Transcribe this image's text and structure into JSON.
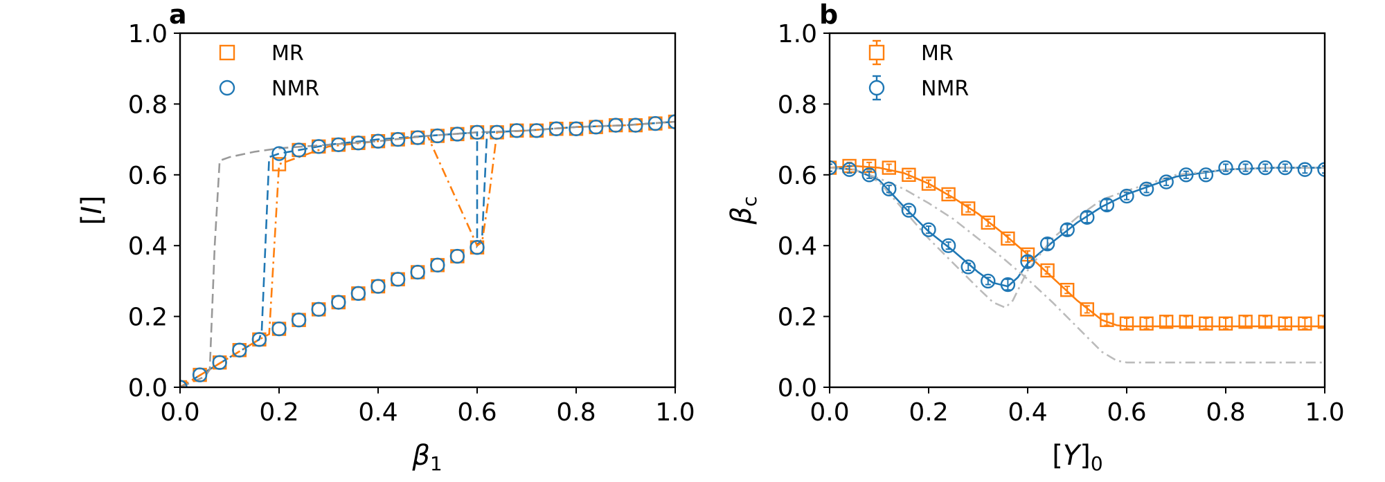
{
  "colors": {
    "mr": "#ff7f0e",
    "nmr": "#1f77b4",
    "reference": "#999999"
  },
  "chart_data": [
    {
      "panel": "a",
      "type": "line",
      "xlabel": "β1",
      "ylabel": "[I]",
      "xlim": [
        0,
        1
      ],
      "ylim": [
        0,
        1
      ],
      "xticks": [
        "0.0",
        "0.2",
        "0.4",
        "0.6",
        "0.8",
        "1.0"
      ],
      "yticks": [
        "0.0",
        "0.2",
        "0.4",
        "0.6",
        "0.8",
        "1.0"
      ],
      "grid": false,
      "legend_position": "top-left",
      "legend": [
        {
          "label": "MR",
          "marker": "square",
          "color": "#ff7f0e"
        },
        {
          "label": "NMR",
          "marker": "circle",
          "color": "#1f77b4"
        }
      ],
      "series": [
        {
          "name": "MR",
          "style": "markers",
          "marker": "square",
          "color": "#ff7f0e",
          "x": [
            0,
            0.04,
            0.08,
            0.12,
            0.16,
            0.2,
            0.24,
            0.28,
            0.32,
            0.36,
            0.4,
            0.44,
            0.48,
            0.52,
            0.56,
            0.6,
            0.2,
            0.24,
            0.28,
            0.32,
            0.36,
            0.4,
            0.44,
            0.48,
            0.52,
            0.56,
            0.6,
            0.64,
            0.68,
            0.72,
            0.76,
            0.8,
            0.84,
            0.88,
            0.92,
            0.96,
            1.0
          ],
          "y": [
            0,
            0.035,
            0.07,
            0.105,
            0.135,
            0.165,
            0.19,
            0.22,
            0.24,
            0.265,
            0.285,
            0.305,
            0.325,
            0.345,
            0.37,
            0.395,
            0.63,
            0.67,
            0.68,
            0.685,
            0.69,
            0.695,
            0.7,
            0.705,
            0.71,
            0.715,
            0.72,
            0.72,
            0.725,
            0.725,
            0.73,
            0.73,
            0.735,
            0.74,
            0.74,
            0.745,
            0.75
          ]
        },
        {
          "name": "NMR",
          "style": "markers",
          "marker": "circle",
          "color": "#1f77b4",
          "x": [
            0,
            0.04,
            0.08,
            0.12,
            0.16,
            0.2,
            0.24,
            0.28,
            0.32,
            0.36,
            0.4,
            0.44,
            0.48,
            0.52,
            0.56,
            0.6,
            0.2,
            0.24,
            0.28,
            0.32,
            0.36,
            0.4,
            0.44,
            0.48,
            0.52,
            0.56,
            0.6,
            0.64,
            0.68,
            0.72,
            0.76,
            0.8,
            0.84,
            0.88,
            0.92,
            0.96,
            1.0
          ],
          "y": [
            0,
            0.035,
            0.07,
            0.105,
            0.135,
            0.165,
            0.19,
            0.22,
            0.24,
            0.265,
            0.285,
            0.305,
            0.325,
            0.345,
            0.37,
            0.395,
            0.66,
            0.67,
            0.68,
            0.685,
            0.69,
            0.695,
            0.7,
            0.705,
            0.71,
            0.715,
            0.72,
            0.72,
            0.725,
            0.725,
            0.73,
            0.73,
            0.735,
            0.74,
            0.74,
            0.745,
            0.75
          ]
        },
        {
          "style": "dashed",
          "color": "#1f77b4",
          "x": [
            0,
            0.16,
            0.165,
            0.18,
            0.2,
            0.3,
            0.4,
            0.5,
            0.6,
            0.6,
            0.61,
            0.62,
            0.7,
            0.8,
            0.9,
            1.0
          ],
          "y": [
            0,
            0.135,
            0.16,
            0.65,
            0.66,
            0.685,
            0.7,
            0.71,
            0.72,
            0.4,
            0.42,
            0.72,
            0.725,
            0.735,
            0.74,
            0.75
          ]
        },
        {
          "style": "dashdot",
          "color": "#ff7f0e",
          "x": [
            0,
            0.16,
            0.18,
            0.2,
            0.3,
            0.4,
            0.5,
            0.6,
            0.61,
            0.625,
            0.64,
            0.7,
            0.8,
            0.9,
            1.0
          ],
          "y": [
            0,
            0.135,
            0.15,
            0.63,
            0.68,
            0.695,
            0.71,
            0.4,
            0.41,
            0.55,
            0.72,
            0.725,
            0.735,
            0.74,
            0.75
          ]
        },
        {
          "style": "dashed",
          "color": "#999999",
          "x": [
            0,
            0.05,
            0.06,
            0.07,
            0.08,
            0.1,
            0.15,
            0.2,
            0.3,
            0.4,
            0.5,
            0.6,
            0.7,
            0.8,
            0.9,
            1.0
          ],
          "y": [
            0,
            0.03,
            0.05,
            0.4,
            0.64,
            0.65,
            0.665,
            0.675,
            0.685,
            0.695,
            0.71,
            0.72,
            0.725,
            0.735,
            0.74,
            0.75
          ]
        }
      ]
    },
    {
      "panel": "b",
      "type": "line",
      "xlabel": "[Y]0",
      "ylabel": "βc",
      "xlim": [
        0,
        1
      ],
      "ylim": [
        0,
        1
      ],
      "xticks": [
        "0.0",
        "0.2",
        "0.4",
        "0.6",
        "0.8",
        "1.0"
      ],
      "yticks": [
        "0.0",
        "0.2",
        "0.4",
        "0.6",
        "0.8",
        "1.0"
      ],
      "grid": false,
      "legend_position": "top-left",
      "legend": [
        {
          "label": "MR",
          "marker": "square-errorbar",
          "color": "#ff7f0e"
        },
        {
          "label": "NMR",
          "marker": "circle-errorbar",
          "color": "#1f77b4"
        }
      ],
      "series": [
        {
          "name": "MR",
          "style": "markers-errorbar",
          "marker": "square",
          "color": "#ff7f0e",
          "x": [
            0,
            0.04,
            0.08,
            0.12,
            0.16,
            0.2,
            0.24,
            0.28,
            0.32,
            0.36,
            0.4,
            0.44,
            0.48,
            0.52,
            0.56,
            0.6,
            0.64,
            0.68,
            0.72,
            0.76,
            0.8,
            0.84,
            0.88,
            0.92,
            0.96,
            1.0
          ],
          "y": [
            0.62,
            0.625,
            0.625,
            0.62,
            0.6,
            0.575,
            0.545,
            0.505,
            0.465,
            0.42,
            0.375,
            0.33,
            0.275,
            0.22,
            0.19,
            0.18,
            0.18,
            0.185,
            0.185,
            0.18,
            0.18,
            0.185,
            0.185,
            0.18,
            0.18,
            0.185
          ],
          "err": [
            0.01,
            0.01,
            0.01,
            0.01,
            0.01,
            0.01,
            0.01,
            0.01,
            0.01,
            0.01,
            0.01,
            0.01,
            0.01,
            0.01,
            0.015,
            0.015,
            0.015,
            0.015,
            0.015,
            0.015,
            0.015,
            0.015,
            0.015,
            0.015,
            0.015,
            0.015
          ]
        },
        {
          "name": "NMR",
          "style": "markers-errorbar",
          "marker": "circle",
          "color": "#1f77b4",
          "x": [
            0,
            0.04,
            0.08,
            0.12,
            0.16,
            0.2,
            0.24,
            0.28,
            0.32,
            0.36,
            0.4,
            0.44,
            0.48,
            0.52,
            0.56,
            0.6,
            0.64,
            0.68,
            0.72,
            0.76,
            0.8,
            0.84,
            0.88,
            0.92,
            0.96,
            1.0
          ],
          "y": [
            0.62,
            0.615,
            0.6,
            0.56,
            0.5,
            0.445,
            0.4,
            0.34,
            0.3,
            0.29,
            0.355,
            0.405,
            0.445,
            0.48,
            0.515,
            0.54,
            0.56,
            0.58,
            0.6,
            0.6,
            0.62,
            0.62,
            0.62,
            0.62,
            0.615,
            0.615
          ],
          "err": [
            0.01,
            0.01,
            0.01,
            0.01,
            0.01,
            0.01,
            0.01,
            0.01,
            0.01,
            0.015,
            0.015,
            0.015,
            0.015,
            0.015,
            0.015,
            0.01,
            0.01,
            0.01,
            0.01,
            0.01,
            0.01,
            0.01,
            0.01,
            0.01,
            0.01,
            0.01
          ]
        },
        {
          "style": "solid",
          "color": "#ff7f0e",
          "x": [
            0,
            0.05,
            0.1,
            0.15,
            0.2,
            0.25,
            0.3,
            0.35,
            0.4,
            0.45,
            0.5,
            0.55,
            0.58,
            0.6,
            0.7,
            0.8,
            0.9,
            1.0
          ],
          "y": [
            0.62,
            0.625,
            0.62,
            0.605,
            0.575,
            0.535,
            0.49,
            0.435,
            0.375,
            0.31,
            0.245,
            0.19,
            0.175,
            0.172,
            0.172,
            0.172,
            0.172,
            0.172
          ]
        },
        {
          "style": "solid",
          "color": "#1f77b4",
          "x": [
            0,
            0.05,
            0.1,
            0.15,
            0.2,
            0.25,
            0.3,
            0.33,
            0.36,
            0.38,
            0.4,
            0.45,
            0.5,
            0.55,
            0.6,
            0.7,
            0.8,
            0.9,
            1.0
          ],
          "y": [
            0.62,
            0.615,
            0.585,
            0.51,
            0.44,
            0.385,
            0.325,
            0.295,
            0.285,
            0.31,
            0.35,
            0.41,
            0.465,
            0.51,
            0.545,
            0.595,
            0.615,
            0.62,
            0.62
          ]
        },
        {
          "style": "dashdot",
          "color": "#bbbbbb",
          "x": [
            0,
            0.05,
            0.1,
            0.15,
            0.2,
            0.25,
            0.3,
            0.33,
            0.355,
            0.37,
            0.4,
            0.45,
            0.5,
            0.55,
            0.6,
            0.7,
            0.8,
            0.9,
            1.0
          ],
          "y": [
            0.62,
            0.615,
            0.58,
            0.5,
            0.42,
            0.35,
            0.28,
            0.24,
            0.225,
            0.245,
            0.33,
            0.42,
            0.48,
            0.53,
            0.555,
            0.6,
            0.615,
            0.62,
            0.62
          ]
        },
        {
          "style": "dashdot",
          "color": "#bbbbbb",
          "x": [
            0,
            0.05,
            0.1,
            0.15,
            0.2,
            0.25,
            0.3,
            0.35,
            0.4,
            0.45,
            0.5,
            0.55,
            0.58,
            0.6,
            0.7,
            0.8,
            0.9,
            1.0
          ],
          "y": [
            0.62,
            0.615,
            0.59,
            0.56,
            0.52,
            0.475,
            0.42,
            0.365,
            0.305,
            0.24,
            0.17,
            0.1,
            0.075,
            0.07,
            0.07,
            0.07,
            0.07,
            0.07
          ]
        }
      ]
    }
  ]
}
